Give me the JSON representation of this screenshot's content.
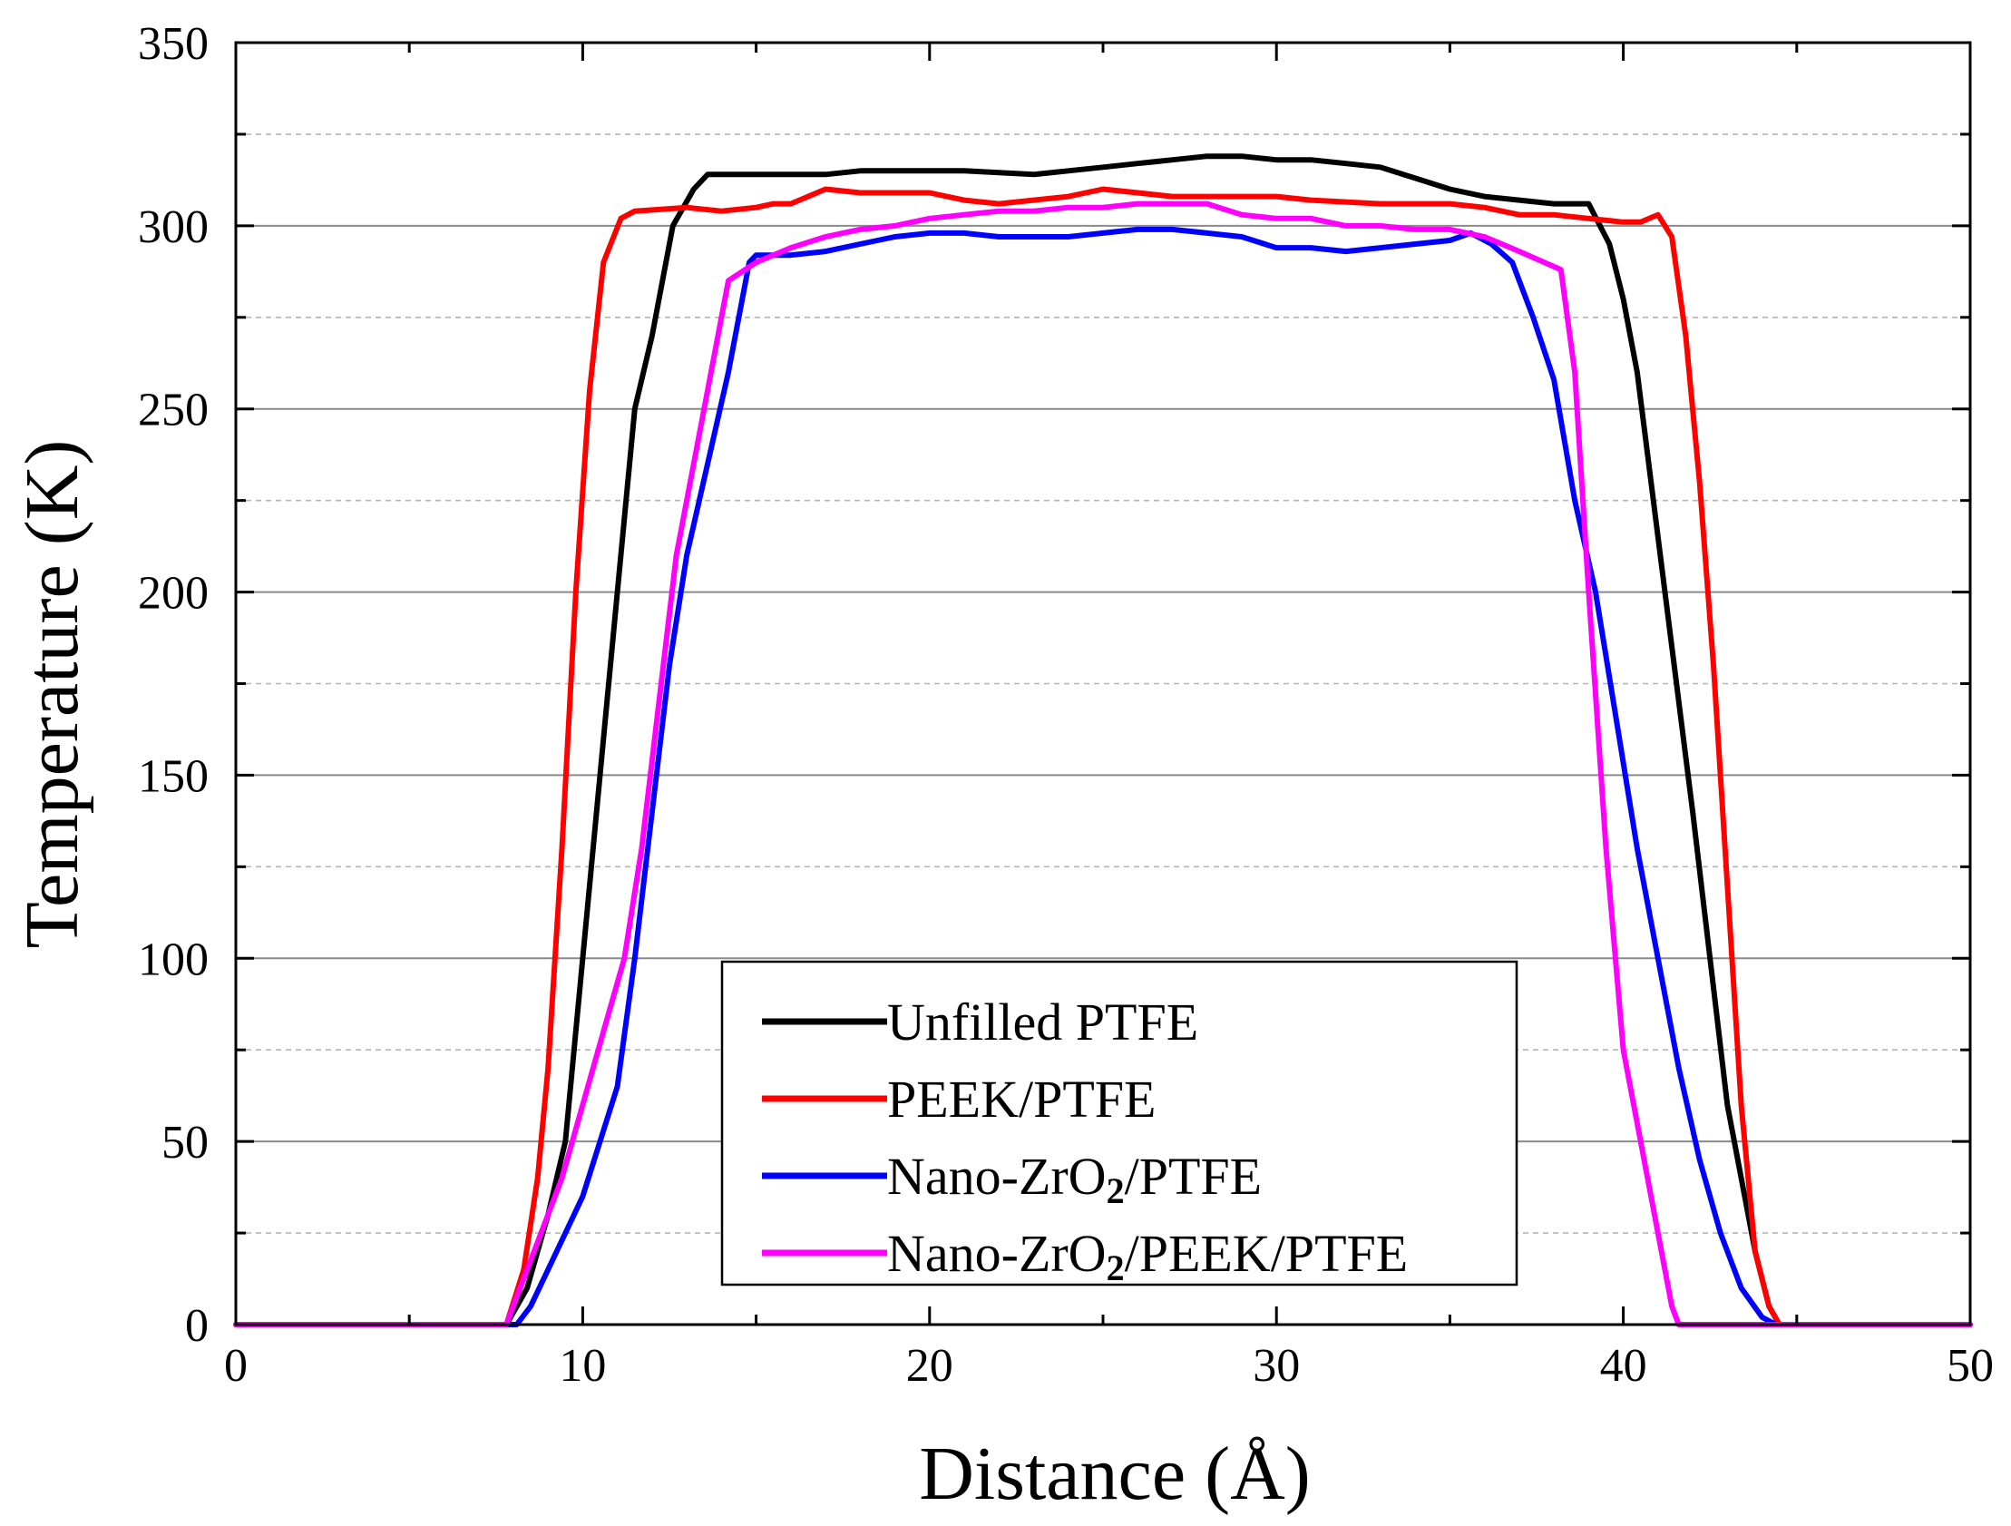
{
  "chart_data": {
    "type": "line",
    "title": "",
    "xlabel": "Distance (Å)",
    "ylabel": "Temperature (K)",
    "xlim": [
      0,
      50
    ],
    "ylim": [
      0,
      350
    ],
    "xticks": [
      0,
      10,
      20,
      30,
      40,
      50
    ],
    "yticks": [
      0,
      50,
      100,
      150,
      200,
      250,
      300,
      350
    ],
    "x_minor_step": 5,
    "y_minor_step": 25,
    "grid": "major solid, minor dashed (horizontal)",
    "legend_position": "bottom-center",
    "series": [
      {
        "name": "Unfilled PTFE",
        "color": "#000000",
        "points": [
          [
            0,
            0
          ],
          [
            7.8,
            0
          ],
          [
            8.4,
            10
          ],
          [
            9.0,
            30
          ],
          [
            9.5,
            50
          ],
          [
            10.0,
            100
          ],
          [
            10.5,
            150
          ],
          [
            11.0,
            200
          ],
          [
            11.5,
            250
          ],
          [
            12.0,
            270
          ],
          [
            12.6,
            300
          ],
          [
            13.2,
            310
          ],
          [
            13.6,
            314
          ],
          [
            15,
            314
          ],
          [
            17,
            314
          ],
          [
            18,
            315
          ],
          [
            20,
            315
          ],
          [
            21,
            315
          ],
          [
            23,
            314
          ],
          [
            24,
            315
          ],
          [
            25,
            316
          ],
          [
            26,
            317
          ],
          [
            27,
            318
          ],
          [
            28,
            319
          ],
          [
            29,
            319
          ],
          [
            30,
            318
          ],
          [
            31,
            318
          ],
          [
            32,
            317
          ],
          [
            33,
            316
          ],
          [
            34,
            313
          ],
          [
            35,
            310
          ],
          [
            36,
            308
          ],
          [
            37,
            307
          ],
          [
            38,
            306
          ],
          [
            39,
            306
          ],
          [
            39.6,
            295
          ],
          [
            40.0,
            280
          ],
          [
            40.4,
            260
          ],
          [
            40.8,
            230
          ],
          [
            41.2,
            200
          ],
          [
            41.6,
            170
          ],
          [
            42.0,
            140
          ],
          [
            42.5,
            100
          ],
          [
            43.0,
            60
          ],
          [
            43.4,
            40
          ],
          [
            43.8,
            20
          ],
          [
            44.2,
            5
          ],
          [
            44.5,
            0
          ],
          [
            50,
            0
          ]
        ]
      },
      {
        "name": "PEEK/PTFE",
        "color": "#ff0000",
        "points": [
          [
            0,
            0
          ],
          [
            7.8,
            0
          ],
          [
            8.3,
            15
          ],
          [
            8.7,
            40
          ],
          [
            9.0,
            70
          ],
          [
            9.4,
            130
          ],
          [
            9.8,
            200
          ],
          [
            10.2,
            255
          ],
          [
            10.6,
            290
          ],
          [
            11.1,
            302
          ],
          [
            11.5,
            304
          ],
          [
            13,
            305
          ],
          [
            14,
            304
          ],
          [
            15,
            305
          ],
          [
            15.5,
            306
          ],
          [
            16,
            306
          ],
          [
            17,
            310
          ],
          [
            18,
            309
          ],
          [
            20,
            309
          ],
          [
            21,
            307
          ],
          [
            22,
            306
          ],
          [
            23,
            307
          ],
          [
            24,
            308
          ],
          [
            25,
            310
          ],
          [
            26,
            309
          ],
          [
            27,
            308
          ],
          [
            28,
            308
          ],
          [
            30,
            308
          ],
          [
            31,
            307
          ],
          [
            33,
            306
          ],
          [
            35,
            306
          ],
          [
            36,
            305
          ],
          [
            37,
            303
          ],
          [
            38,
            303
          ],
          [
            39,
            302
          ],
          [
            40,
            301
          ],
          [
            40.5,
            301
          ],
          [
            41.0,
            303
          ],
          [
            41.4,
            297
          ],
          [
            41.8,
            270
          ],
          [
            42.2,
            230
          ],
          [
            42.6,
            180
          ],
          [
            43.0,
            120
          ],
          [
            43.4,
            60
          ],
          [
            43.8,
            20
          ],
          [
            44.2,
            5
          ],
          [
            44.5,
            0
          ],
          [
            50,
            0
          ]
        ]
      },
      {
        "name": "Nano-ZrO₂/PTFE",
        "color": "#0000ff",
        "points": [
          [
            0,
            0
          ],
          [
            8.1,
            0
          ],
          [
            8.5,
            5
          ],
          [
            9.0,
            15
          ],
          [
            9.5,
            25
          ],
          [
            10.0,
            35
          ],
          [
            10.5,
            50
          ],
          [
            11.0,
            65
          ],
          [
            11.5,
            100
          ],
          [
            12.0,
            140
          ],
          [
            12.5,
            180
          ],
          [
            13.0,
            210
          ],
          [
            13.6,
            235
          ],
          [
            14.2,
            260
          ],
          [
            14.8,
            290
          ],
          [
            15,
            292
          ],
          [
            16,
            292
          ],
          [
            17,
            293
          ],
          [
            18,
            295
          ],
          [
            19,
            297
          ],
          [
            20,
            298
          ],
          [
            21,
            298
          ],
          [
            22,
            297
          ],
          [
            23,
            297
          ],
          [
            24,
            297
          ],
          [
            25,
            298
          ],
          [
            26,
            299
          ],
          [
            27,
            299
          ],
          [
            28,
            298
          ],
          [
            29,
            297
          ],
          [
            30,
            294
          ],
          [
            31,
            294
          ],
          [
            32,
            293
          ],
          [
            33,
            294
          ],
          [
            34,
            295
          ],
          [
            35,
            296
          ],
          [
            35.6,
            298
          ],
          [
            36.2,
            295
          ],
          [
            36.8,
            290
          ],
          [
            37.4,
            275
          ],
          [
            38.0,
            258
          ],
          [
            38.6,
            225
          ],
          [
            39.2,
            200
          ],
          [
            39.8,
            165
          ],
          [
            40.4,
            130
          ],
          [
            41.0,
            100
          ],
          [
            41.6,
            70
          ],
          [
            42.2,
            45
          ],
          [
            42.8,
            25
          ],
          [
            43.4,
            10
          ],
          [
            44.0,
            2
          ],
          [
            44.4,
            0
          ],
          [
            50,
            0
          ]
        ]
      },
      {
        "name": "Nano-ZrO₂/PEEK/PTFE",
        "color": "#ff00ff",
        "points": [
          [
            0,
            0
          ],
          [
            7.8,
            0
          ],
          [
            8.2,
            10
          ],
          [
            8.8,
            25
          ],
          [
            9.4,
            40
          ],
          [
            10.0,
            60
          ],
          [
            10.6,
            80
          ],
          [
            11.2,
            100
          ],
          [
            11.7,
            130
          ],
          [
            12.2,
            170
          ],
          [
            12.7,
            210
          ],
          [
            13.3,
            240
          ],
          [
            13.8,
            265
          ],
          [
            14.2,
            285
          ],
          [
            15,
            290
          ],
          [
            16,
            294
          ],
          [
            17,
            297
          ],
          [
            18,
            299
          ],
          [
            19,
            300
          ],
          [
            20,
            302
          ],
          [
            21,
            303
          ],
          [
            22,
            304
          ],
          [
            23,
            304
          ],
          [
            24,
            305
          ],
          [
            25,
            305
          ],
          [
            26,
            306
          ],
          [
            27,
            306
          ],
          [
            28,
            306
          ],
          [
            29,
            303
          ],
          [
            30,
            302
          ],
          [
            31,
            302
          ],
          [
            32,
            300
          ],
          [
            33,
            300
          ],
          [
            34,
            299
          ],
          [
            35,
            299
          ],
          [
            36,
            297
          ],
          [
            37,
            293
          ],
          [
            38.2,
            288
          ],
          [
            38.6,
            260
          ],
          [
            39.0,
            200
          ],
          [
            39.5,
            130
          ],
          [
            40.0,
            75
          ],
          [
            40.5,
            50
          ],
          [
            41.0,
            25
          ],
          [
            41.4,
            5
          ],
          [
            41.6,
            0
          ],
          [
            50,
            0
          ]
        ]
      }
    ]
  },
  "legend": {
    "items": [
      {
        "label": "Unfilled PTFE",
        "main": "Unfilled PTFE",
        "sub": "",
        "rest": ""
      },
      {
        "label": "PEEK/PTFE",
        "main": "PEEK/PTFE",
        "sub": "",
        "rest": ""
      },
      {
        "label": "Nano-ZrO₂/PTFE",
        "main": "Nano-ZrO",
        "sub": "2",
        "rest": "/PTFE"
      },
      {
        "label": "Nano-ZrO₂/PEEK/PTFE",
        "main": "Nano-ZrO",
        "sub": "2",
        "rest": "/PEEK/PTFE"
      }
    ]
  }
}
